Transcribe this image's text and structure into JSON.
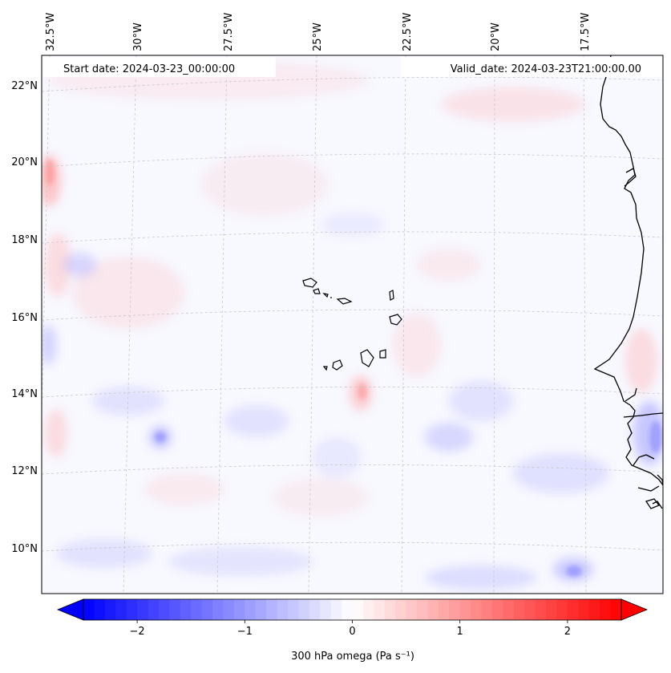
{
  "map": {
    "start_date": "Start date: 2024-03-23_00:00:00",
    "valid_date": "Valid_date: 2024-03-23T21:00:00.00",
    "lon_labels": [
      "32.5°W",
      "30°W",
      "27.5°W",
      "25°W",
      "22.5°W",
      "20°W",
      "17.5°W"
    ],
    "lat_labels": [
      "22°N",
      "20°N",
      "18°N",
      "16°N",
      "14°N",
      "12°N",
      "10°N"
    ],
    "extent": {
      "lon_min": -33.0,
      "lon_max": -15.8,
      "lat_min": 8.9,
      "lat_max": 22.8
    },
    "colors": {
      "coastline": "#000000",
      "grid": "#c8c8c8",
      "negative": "#0000ff",
      "positive": "#ff0000",
      "neutral": "#ffffff"
    }
  },
  "colorbar": {
    "label": "300 hPa omega (Pa s⁻¹)",
    "tick_labels": [
      "−2",
      "−1",
      "0",
      "1",
      "2"
    ],
    "tick_values": [
      -2,
      -1,
      0,
      1,
      2
    ],
    "min": -2.5,
    "max": 2.5,
    "extend": "both",
    "colormap": "bwr"
  }
}
